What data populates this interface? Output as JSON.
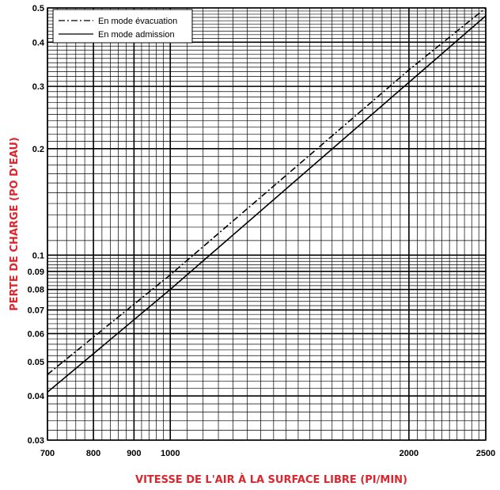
{
  "chart_data": {
    "type": "line",
    "xlabel": "VITESSE DE L'AIR À LA SURFACE LIBRE (PI/MIN)",
    "ylabel": "PERTE DE CHARGE (PO D'EAU)",
    "x_scale": "log",
    "y_scale": "log",
    "xlim": [
      700,
      2500
    ],
    "ylim": [
      0.03,
      0.5
    ],
    "grid": true,
    "legend_position": "top-left",
    "x_tick_labels": [
      "700",
      "800",
      "900",
      "1000",
      "2000",
      "2500"
    ],
    "x_tick_values": [
      700,
      800,
      900,
      1000,
      2000,
      2500
    ],
    "y_tick_labels": [
      "0.03",
      "0.04",
      "0.05",
      "0.06",
      "0.07",
      "0.08",
      "0.09",
      "0.1",
      "0.2",
      "0.3",
      "0.4",
      "0.5"
    ],
    "y_tick_values": [
      0.03,
      0.04,
      0.05,
      0.06,
      0.07,
      0.08,
      0.09,
      0.1,
      0.2,
      0.3,
      0.4,
      0.5
    ],
    "series": [
      {
        "name": "En mode évacuation",
        "line_style": "dashdot",
        "x": [
          700,
          1000,
          2000,
          2500
        ],
        "y": [
          0.046,
          0.088,
          0.334,
          0.5
        ]
      },
      {
        "name": "En mode admission",
        "line_style": "solid",
        "x": [
          700,
          1000,
          2000,
          2500
        ],
        "y": [
          0.041,
          0.08,
          0.308,
          0.475
        ]
      }
    ],
    "colors": {
      "title": "#d9272e",
      "lines": "#000000",
      "grid": "#000000"
    }
  }
}
